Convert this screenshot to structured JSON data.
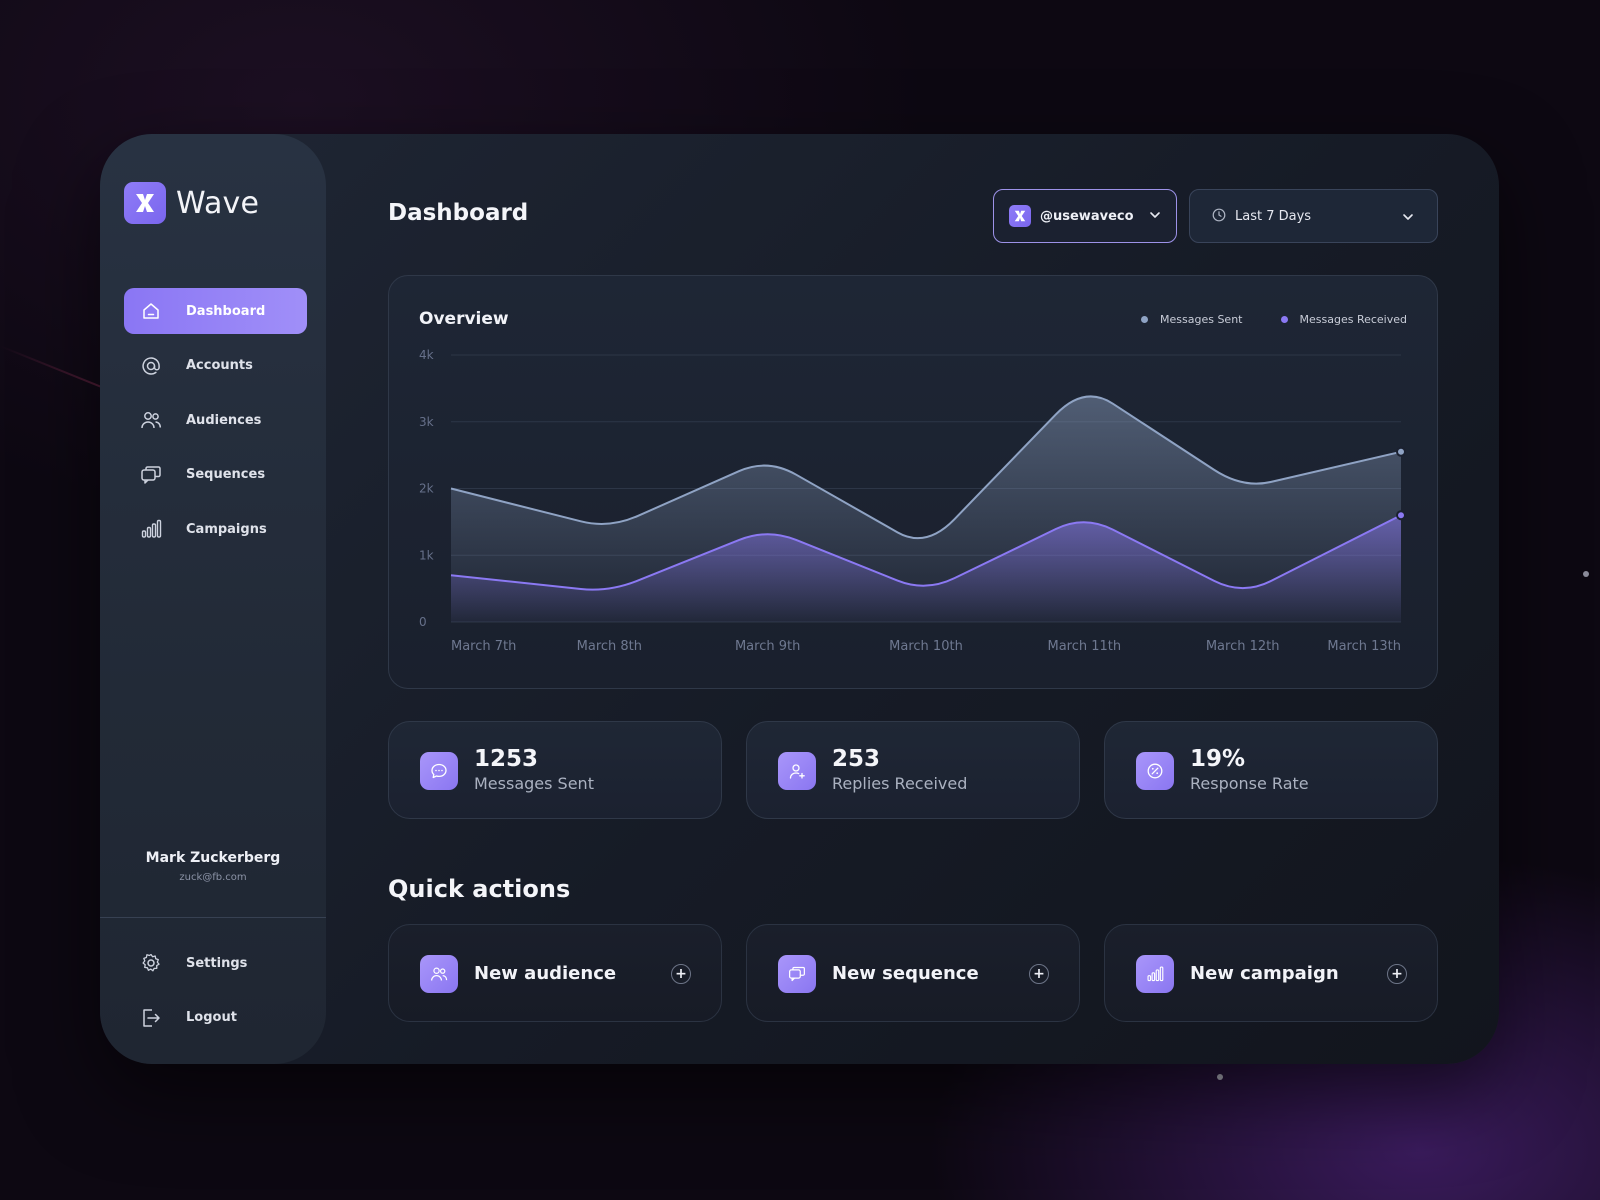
{
  "brand": {
    "name": "Wave"
  },
  "sidebar": {
    "items": [
      {
        "label": "Dashboard",
        "icon": "home-icon",
        "active": true
      },
      {
        "label": "Accounts",
        "icon": "at-sign-icon",
        "active": false
      },
      {
        "label": "Audiences",
        "icon": "users-icon",
        "active": false
      },
      {
        "label": "Sequences",
        "icon": "messages-icon",
        "active": false
      },
      {
        "label": "Campaigns",
        "icon": "bar-chart-icon",
        "active": false
      }
    ],
    "user": {
      "name": "Mark Zuckerberg",
      "email": "zuck@fb.com"
    },
    "bottom_items": [
      {
        "label": "Settings",
        "icon": "gear-icon"
      },
      {
        "label": "Logout",
        "icon": "logout-icon"
      }
    ]
  },
  "header": {
    "title": "Dashboard",
    "account_select": "@usewaveco",
    "range_select": "Last 7 Days"
  },
  "overview": {
    "title": "Overview"
  },
  "chart_data": {
    "type": "area",
    "title": "Overview",
    "xlabel": "",
    "ylabel": "",
    "categories": [
      "March 7th",
      "March 8th",
      "March 9th",
      "March 10th",
      "March 11th",
      "March 12th",
      "March 13th"
    ],
    "y_ticks": [
      "0",
      "1k",
      "2k",
      "3k",
      "4k"
    ],
    "ylim": [
      0,
      4000
    ],
    "series": [
      {
        "name": "Messages Sent",
        "color": "#8fa3c4",
        "values": [
          2000,
          1400,
          2450,
          1100,
          3550,
          2000,
          2550
        ]
      },
      {
        "name": "Messages Received",
        "color": "#8b79f3",
        "values": [
          700,
          450,
          1400,
          450,
          1600,
          400,
          1600
        ]
      }
    ],
    "grid": true,
    "legend_position": "top-right"
  },
  "stats": [
    {
      "value": "1253",
      "label": "Messages Sent",
      "icon": "chat-bubble-icon"
    },
    {
      "value": "253",
      "label": "Replies Received",
      "icon": "user-plus-icon"
    },
    {
      "value": "19%",
      "label": "Response Rate",
      "icon": "percent-icon"
    }
  ],
  "quick_actions": {
    "title": "Quick actions",
    "items": [
      {
        "label": "New audience",
        "icon": "users-icon"
      },
      {
        "label": "New sequence",
        "icon": "messages-icon"
      },
      {
        "label": "New campaign",
        "icon": "bar-chart-icon"
      }
    ],
    "plus": "+"
  },
  "colors": {
    "accent": "#8b79f3",
    "background": "#0d0812",
    "panel": "#1e2635"
  }
}
